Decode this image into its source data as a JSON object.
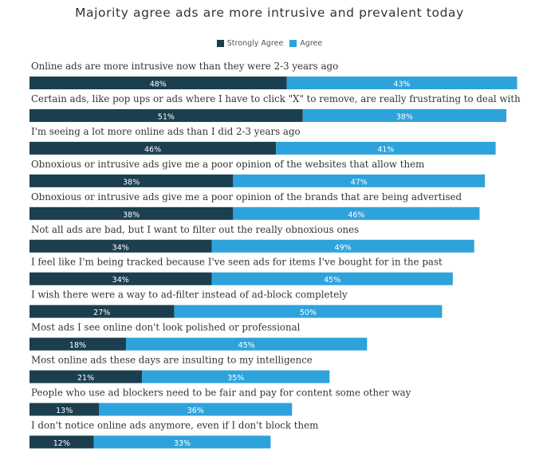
{
  "chart_data": {
    "type": "bar",
    "orientation": "horizontal",
    "stacked": true,
    "title": "Majority agree ads are more intrusive and prevalent today",
    "xlabel": "",
    "ylabel": "",
    "xlim": [
      0,
      91
    ],
    "legend_position": "top-center",
    "grid": false,
    "categories": [
      "Online ads are more intrusive now than they were 2-3 years ago",
      "Certain ads, like pop ups or ads where I have to click \"X\" to remove, are really frustrating to deal with",
      "I'm seeing a lot more online ads than I did 2-3 years ago",
      "Obnoxious or intrusive ads give me a poor opinion of the websites that allow them",
      "Obnoxious or intrusive ads give me a poor opinion of the brands that are being advertised",
      "Not all ads are bad, but I want to filter out the really obnoxious ones",
      "I feel like I'm being tracked because I've seen ads for items I've bought for in the past",
      "I wish there were a way to ad-filter instead of ad-block completely",
      "Most ads I see online don't look polished or professional",
      "Most online ads these days are insulting to my intelligence",
      "People who use ad blockers need to be fair and pay for content some other way",
      "I don't notice online ads anymore, even if I don't block them"
    ],
    "series": [
      {
        "name": "Strongly Agree",
        "color": "#1b3f4e",
        "values": [
          48,
          51,
          46,
          38,
          38,
          34,
          34,
          27,
          18,
          21,
          13,
          12
        ],
        "labels": [
          "48%",
          "51%",
          "46%",
          "38%",
          "38%",
          "34%",
          "34%",
          "27%",
          "18%",
          "21%",
          "13%",
          "12%"
        ]
      },
      {
        "name": "Agree",
        "color": "#2ea3db",
        "values": [
          43,
          38,
          41,
          47,
          46,
          49,
          45,
          50,
          45,
          35,
          36,
          33
        ],
        "labels": [
          "43%",
          "38%",
          "41%",
          "47%",
          "46%",
          "49%",
          "45%",
          "50%",
          "45%",
          "35%",
          "36%",
          "33%"
        ]
      }
    ]
  }
}
